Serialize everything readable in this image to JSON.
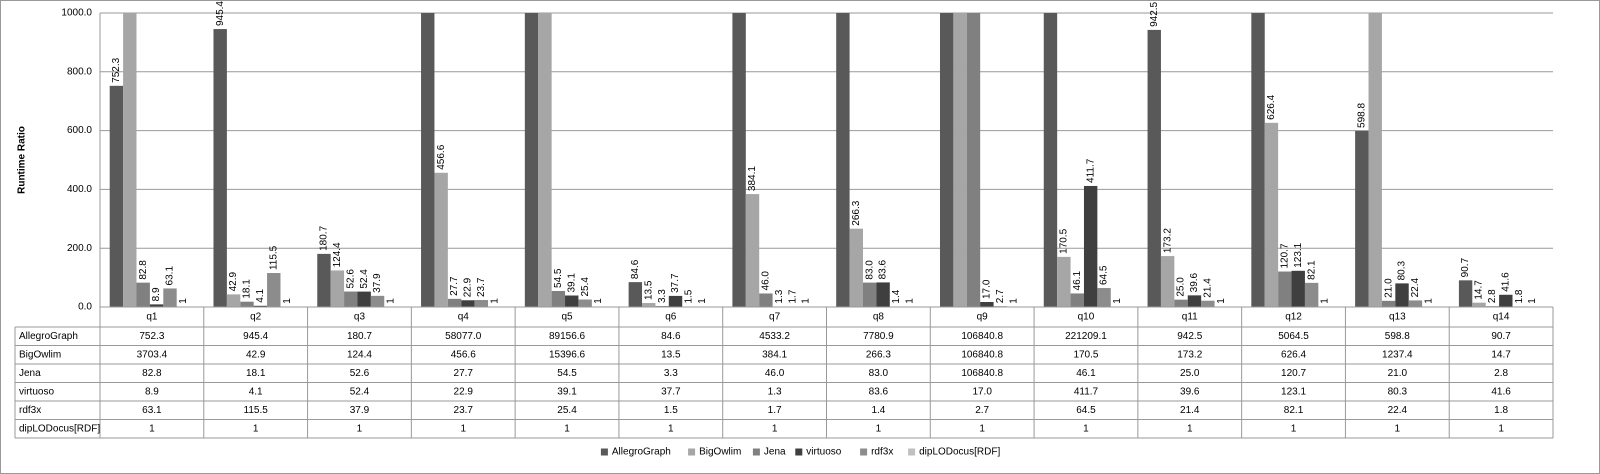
{
  "chart_data": {
    "type": "bar",
    "y_label": "Runtime Ratio",
    "categories": [
      "q1",
      "q2",
      "q3",
      "q4",
      "q5",
      "q6",
      "q7",
      "q8",
      "q9",
      "q10",
      "q11",
      "q12",
      "q13",
      "q14"
    ],
    "ylim": [
      0,
      1000
    ],
    "yticks": [
      {
        "value": 0,
        "label": "0.0"
      },
      {
        "value": 200,
        "label": "200.0"
      },
      {
        "value": 400,
        "label": "400.0"
      },
      {
        "value": 600,
        "label": "600.0"
      },
      {
        "value": 800,
        "label": "800.0"
      },
      {
        "value": 1000,
        "label": "1000.0"
      }
    ],
    "grid": true,
    "legend": "bottom",
    "series": [
      {
        "name": "AllegroGraph",
        "color": "#595959",
        "values": [
          752.3,
          945.4,
          180.7,
          58077.0,
          89156.6,
          84.6,
          4533.2,
          7780.9,
          106840.8,
          221209.1,
          942.5,
          5064.5,
          598.8,
          90.7
        ],
        "value_labels": [
          "752.3",
          "945.4",
          "180.7",
          "58077.0",
          "89156.6",
          "84.6",
          "4533.2",
          "7780.9",
          "106840.8",
          "221209.1",
          "942.5",
          "5064.5",
          "598.8",
          "90.7"
        ]
      },
      {
        "name": "BigOwlim",
        "color": "#a6a6a6",
        "values": [
          3703.4,
          42.9,
          124.4,
          456.6,
          15396.6,
          13.5,
          384.1,
          266.3,
          106840.8,
          170.5,
          173.2,
          626.4,
          1237.4,
          14.7
        ],
        "value_labels": [
          "3703.4",
          "42.9",
          "124.4",
          "456.6",
          "15396.6",
          "13.5",
          "384.1",
          "266.3",
          "106840.8",
          "170.5",
          "173.2",
          "626.4",
          "1237.4",
          "14.7"
        ]
      },
      {
        "name": "Jena",
        "color": "#808080",
        "values": [
          82.8,
          18.1,
          52.6,
          27.7,
          54.5,
          3.3,
          46.0,
          83.0,
          106840.8,
          46.1,
          25.0,
          120.7,
          21.0,
          2.8
        ],
        "value_labels": [
          "82.8",
          "18.1",
          "52.6",
          "27.7",
          "54.5",
          "3.3",
          "46.0",
          "83.0",
          "106840.8",
          "46.1",
          "25.0",
          "120.7",
          "21.0",
          "2.8"
        ]
      },
      {
        "name": "virtuoso",
        "color": "#3f3f3f",
        "values": [
          8.9,
          4.1,
          52.4,
          22.9,
          39.1,
          37.7,
          1.3,
          83.6,
          17.0,
          411.7,
          39.6,
          123.1,
          80.3,
          41.6
        ],
        "value_labels": [
          "8.9",
          "4.1",
          "52.4",
          "22.9",
          "39.1",
          "37.7",
          "1.3",
          "83.6",
          "17.0",
          "411.7",
          "39.6",
          "123.1",
          "80.3",
          "41.6"
        ]
      },
      {
        "name": "rdf3x",
        "color": "#8c8c8c",
        "values": [
          63.1,
          115.5,
          37.9,
          23.7,
          25.4,
          1.5,
          1.7,
          1.4,
          2.7,
          64.5,
          21.4,
          82.1,
          22.4,
          1.8
        ],
        "value_labels": [
          "63.1",
          "115.5",
          "37.9",
          "23.7",
          "25.4",
          "1.5",
          "1.7",
          "1.4",
          "2.7",
          "64.5",
          "21.4",
          "82.1",
          "22.4",
          "1.8"
        ]
      },
      {
        "name": "dipLODocus[RDF]",
        "color": "#c0c0c0",
        "values": [
          1,
          1,
          1,
          1,
          1,
          1,
          1,
          1,
          1,
          1,
          1,
          1,
          1,
          1
        ],
        "value_labels": [
          "1",
          "1",
          "1",
          "1",
          "1",
          "1",
          "1",
          "1",
          "1",
          "1",
          "1",
          "1",
          "1",
          "1"
        ]
      }
    ]
  }
}
